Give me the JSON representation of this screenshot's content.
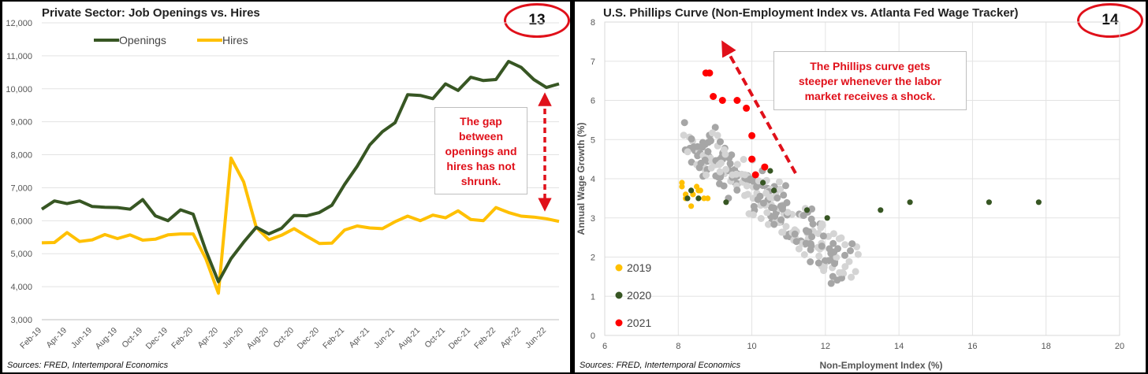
{
  "colors": {
    "openings": "#375623",
    "hires": "#ffc000",
    "accent": "#e0101a",
    "gray_light": "#d4d4d4",
    "gray_dark": "#a6a6a6",
    "y2019": "#ffc000",
    "y2020": "#375623",
    "y2021": "#ff0000"
  },
  "left": {
    "title": "Private Sector: Job Openings vs. Hires",
    "badge": "13",
    "source": "Sources: FRED, Intertemporal Economics",
    "callout": [
      "The gap",
      "between",
      "openings and",
      "hires has not",
      "shrunk."
    ]
  },
  "right": {
    "title": "U.S. Phillips Curve (Non-Employment Index vs. Atlanta Fed Wage Tracker)",
    "badge": "14",
    "source": "Sources: FRED, Intertemporal Economics",
    "callout": [
      "The Phillips curve gets",
      "steeper whenever the labor",
      "market receives a shock."
    ]
  },
  "chart_data": [
    {
      "type": "line",
      "title": "Private Sector: Job Openings vs. Hires",
      "x": [
        "Feb-19",
        "Mar-19",
        "Apr-19",
        "May-19",
        "Jun-19",
        "Jul-19",
        "Aug-19",
        "Sep-19",
        "Oct-19",
        "Nov-19",
        "Dec-19",
        "Jan-20",
        "Feb-20",
        "Mar-20",
        "Apr-20",
        "May-20",
        "Jun-20",
        "Jul-20",
        "Aug-20",
        "Sep-20",
        "Oct-20",
        "Nov-20",
        "Dec-20",
        "Jan-21",
        "Feb-21",
        "Mar-21",
        "Apr-21",
        "May-21",
        "Jun-21",
        "Jul-21",
        "Aug-21",
        "Sep-21",
        "Oct-21",
        "Nov-21",
        "Dec-21",
        "Jan-22",
        "Feb-22",
        "Mar-22",
        "Apr-22",
        "May-22",
        "Jun-22",
        "Jul-22"
      ],
      "xtick_labels": [
        "Feb-19",
        "Apr-19",
        "Jun-19",
        "Aug-19",
        "Oct-19",
        "Dec-19",
        "Feb-20",
        "Apr-20",
        "Jun-20",
        "Aug-20",
        "Oct-20",
        "Dec-20",
        "Feb-21",
        "Apr-21",
        "Jun-21",
        "Aug-21",
        "Oct-21",
        "Dec-21",
        "Feb-22",
        "Apr-22",
        "Jun-22"
      ],
      "series": [
        {
          "name": "Openings",
          "values": [
            6350,
            6600,
            6520,
            6600,
            6430,
            6410,
            6400,
            6350,
            6640,
            6150,
            6000,
            6330,
            6200,
            5100,
            4150,
            4850,
            5350,
            5800,
            5600,
            5770,
            6160,
            6150,
            6250,
            6470,
            7100,
            7650,
            8300,
            8700,
            8970,
            9820,
            9800,
            9700,
            10150,
            9950,
            10350,
            10250,
            10280,
            10830,
            10650,
            10280,
            10040,
            10150
          ]
        },
        {
          "name": "Hires",
          "values": [
            5330,
            5340,
            5640,
            5370,
            5420,
            5580,
            5460,
            5570,
            5410,
            5440,
            5570,
            5600,
            5600,
            4850,
            3800,
            7900,
            7180,
            5800,
            5420,
            5560,
            5760,
            5530,
            5310,
            5320,
            5720,
            5840,
            5780,
            5760,
            5970,
            6140,
            6000,
            6170,
            6090,
            6300,
            6040,
            6000,
            6400,
            6250,
            6140,
            6110,
            6060,
            5980
          ]
        }
      ],
      "ylim": [
        3000,
        12000
      ],
      "yticks": [
        "3,000",
        "4,000",
        "5,000",
        "6,000",
        "7,000",
        "8,000",
        "9,000",
        "10,000",
        "11,000",
        "12,000"
      ],
      "legend": "top-left"
    },
    {
      "type": "scatter",
      "title": "U.S. Phillips Curve (Non-Employment Index vs. Atlanta Fed Wage Tracker)",
      "xlabel": "Non-Employment Index (%)",
      "ylabel": "Annual Wage Growth (%)",
      "xlim": [
        6,
        20
      ],
      "ylim": [
        0,
        8
      ],
      "xticks": [
        "6",
        "8",
        "10",
        "12",
        "14",
        "16",
        "18",
        "20"
      ],
      "yticks": [
        "0",
        "1",
        "2",
        "3",
        "4",
        "5",
        "6",
        "7",
        "8"
      ],
      "series": [
        {
          "name": "2019",
          "points": [
            [
              8.1,
              3.8
            ],
            [
              8.1,
              3.9
            ],
            [
              8.2,
              3.6
            ],
            [
              8.2,
              3.5
            ],
            [
              8.35,
              3.3
            ],
            [
              8.4,
              3.6
            ],
            [
              8.5,
              3.8
            ],
            [
              8.55,
              3.7
            ],
            [
              8.6,
              3.7
            ],
            [
              8.7,
              3.5
            ],
            [
              8.8,
              3.5
            ]
          ]
        },
        {
          "name": "2020",
          "points": [
            [
              8.25,
              3.5
            ],
            [
              8.35,
              3.7
            ],
            [
              8.55,
              3.5
            ],
            [
              9.3,
              3.4
            ],
            [
              10.3,
              3.9
            ],
            [
              10.5,
              4.2
            ],
            [
              10.6,
              3.7
            ],
            [
              11.5,
              3.2
            ],
            [
              12.05,
              3.0
            ],
            [
              13.5,
              3.2
            ],
            [
              14.3,
              3.4
            ],
            [
              16.45,
              3.4
            ],
            [
              17.8,
              3.4
            ]
          ]
        },
        {
          "name": "2021",
          "points": [
            [
              8.75,
              6.7
            ],
            [
              8.85,
              6.7
            ],
            [
              8.95,
              6.1
            ],
            [
              9.2,
              6.0
            ],
            [
              9.6,
              6.0
            ],
            [
              9.85,
              5.8
            ],
            [
              10.0,
              5.1
            ],
            [
              10.0,
              4.5
            ],
            [
              10.1,
              4.1
            ],
            [
              10.35,
              4.3
            ]
          ]
        }
      ],
      "legend": "bottom-left"
    }
  ]
}
